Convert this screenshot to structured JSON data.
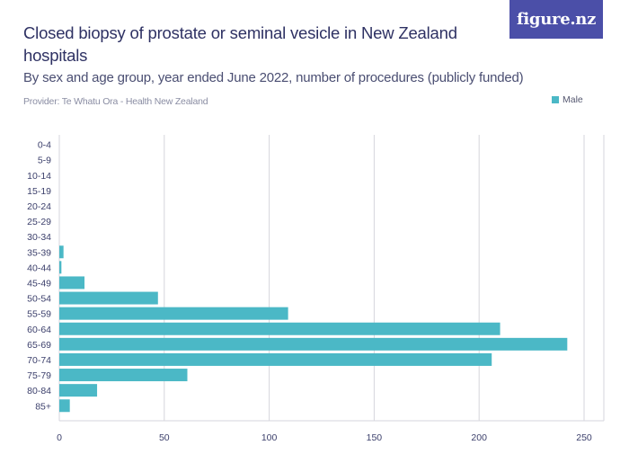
{
  "header": {
    "title": "Closed biopsy of prostate or seminal vesicle in New Zealand hospitals",
    "subtitle": "By sex and age group, year ended June 2022, number of procedures (publicly funded)",
    "provider": "Provider: Te Whatu Ora - Health New Zealand",
    "logo_text": "figure.nz"
  },
  "colors": {
    "bar": "#4bb8c6",
    "grid": "#d6d6dc",
    "text": "#3b3f6b",
    "logo_bg": "#4b4fa8"
  },
  "chart_data": {
    "type": "bar",
    "orientation": "horizontal",
    "categories": [
      "0-4",
      "5-9",
      "10-14",
      "15-19",
      "20-24",
      "25-29",
      "30-34",
      "35-39",
      "40-44",
      "45-49",
      "50-54",
      "55-59",
      "60-64",
      "65-69",
      "70-74",
      "75-79",
      "80-84",
      "85+"
    ],
    "series": [
      {
        "name": "Male",
        "values": [
          0,
          0,
          0,
          0,
          0,
          0,
          0,
          2,
          1,
          12,
          47,
          109,
          210,
          242,
          206,
          61,
          18,
          5
        ]
      }
    ],
    "xlim": [
      0,
      260
    ],
    "xticks": [
      0,
      50,
      100,
      150,
      200,
      250
    ],
    "grid": true,
    "legend_position": "top-right"
  }
}
